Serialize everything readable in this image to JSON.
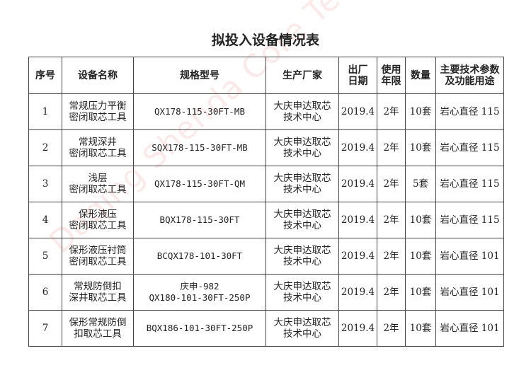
{
  "title": "拟投入设备情况表",
  "watermark": "Daqing Shenda Core Technical Center",
  "headers": [
    "序号",
    "设备名称",
    "规格型号",
    "生产厂家",
    "出厂\n日期",
    "使用\n年限",
    "数量",
    "主要技术参数\n及功能用途"
  ],
  "rows": [
    {
      "no": "1",
      "name": "常规压力平衡\n密闭取芯工具",
      "model": "QX178-115-30FT-MB",
      "maker": "大庆申达取芯\n技术中心",
      "date": "2019.4",
      "life": "2年",
      "qty": "10套",
      "spec": "岩心直径 115"
    },
    {
      "no": "2",
      "name": "常规深井\n密闭取芯工具",
      "model": "SQX178-115-30FT-MB",
      "maker": "大庆申达取芯\n技术中心",
      "date": "2019.4",
      "life": "2年",
      "qty": "10套",
      "spec": "岩心直径 115"
    },
    {
      "no": "3",
      "name": "浅层\n密闭取芯工具",
      "model": "QX178-115-30FT-QM",
      "maker": "大庆申达取芯\n技术中心",
      "date": "2019.4",
      "life": "2年",
      "qty": "5套",
      "spec": "岩心直径 115"
    },
    {
      "no": "4",
      "name": "保形液压\n密闭取芯工具",
      "model": "BQX178-115-30FT",
      "maker": "大庆申达取芯\n技术中心",
      "date": "2019.4",
      "life": "2年",
      "qty": "10套",
      "spec": "岩心直径 115"
    },
    {
      "no": "5",
      "name": "保形液压衬筒\n密闭取芯工具",
      "model": "BCQX178-101-30FT",
      "maker": "大庆申达取芯\n技术中心",
      "date": "2019.4",
      "life": "2年",
      "qty": "10套",
      "spec": "岩心直径 101"
    },
    {
      "no": "6",
      "name": "常规防倒扣\n深井取芯工具",
      "model": "庆申-982\nQX180-101-30FT-250P",
      "maker": "大庆申达取芯\n技术中心",
      "date": "2019.4",
      "life": "2年",
      "qty": "10套",
      "spec": "岩心直径 101"
    },
    {
      "no": "7",
      "name": "保形常规防倒\n扣取芯工具",
      "model": "BQX186-101-30FT-250P",
      "maker": "大庆申达取芯\n技术中心",
      "date": "2019.4",
      "life": "2年",
      "qty": "10套",
      "spec": "岩心直径 101"
    }
  ]
}
